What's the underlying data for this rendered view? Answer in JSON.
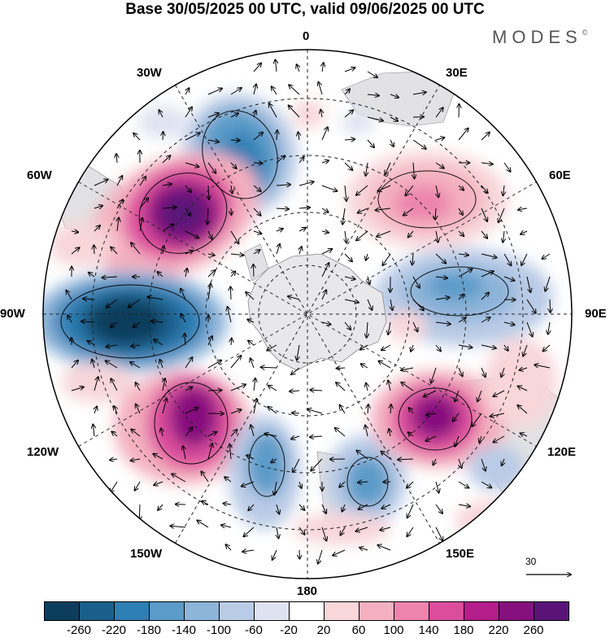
{
  "title": "Base 30/05/2025 00 UTC, valid 09/06/2025 00 UTC",
  "brand": "MODES",
  "brand_mark": "©",
  "longitude_labels": {
    "lon_0": "0",
    "lon_30e": "30E",
    "lon_60e": "60E",
    "lon_90e": "90E",
    "lon_120e": "120E",
    "lon_150e": "150E",
    "lon_180": "180",
    "lon_150w": "150W",
    "lon_120w": "120W",
    "lon_90w": "90W",
    "lon_60w": "60W",
    "lon_30w": "30W"
  },
  "reference_vector": {
    "label": "30"
  },
  "colorbar": {
    "ticks": [
      "-260",
      "-220",
      "-180",
      "-140",
      "-100",
      "-60",
      "-20",
      "20",
      "60",
      "100",
      "140",
      "180",
      "220",
      "260"
    ],
    "colors": [
      "#0d3d5c",
      "#1a5f8c",
      "#2e7fb4",
      "#5b9bc9",
      "#8db4d9",
      "#b9cbe6",
      "#dfe3f1",
      "#ffffff",
      "#f8d6da",
      "#f4b0c0",
      "#ec84ae",
      "#dc4e9c",
      "#b41e8a",
      "#86117e",
      "#5a1478"
    ]
  },
  "anomaly_centers": [
    {
      "sign": "negative",
      "strength": "strong",
      "sector": "30W"
    },
    {
      "sign": "positive",
      "strength": "strong",
      "sector": "60W"
    },
    {
      "sign": "negative",
      "strength": "strong",
      "sector": "90W"
    },
    {
      "sign": "positive",
      "strength": "strong",
      "sector": "120W"
    },
    {
      "sign": "negative",
      "strength": "moderate",
      "sector": "160W"
    },
    {
      "sign": "negative",
      "strength": "moderate",
      "sector": "150E"
    },
    {
      "sign": "positive",
      "strength": "strong",
      "sector": "120E"
    },
    {
      "sign": "negative",
      "strength": "moderate",
      "sector": "85E"
    },
    {
      "sign": "positive",
      "strength": "moderate",
      "sector": "50E"
    }
  ]
}
